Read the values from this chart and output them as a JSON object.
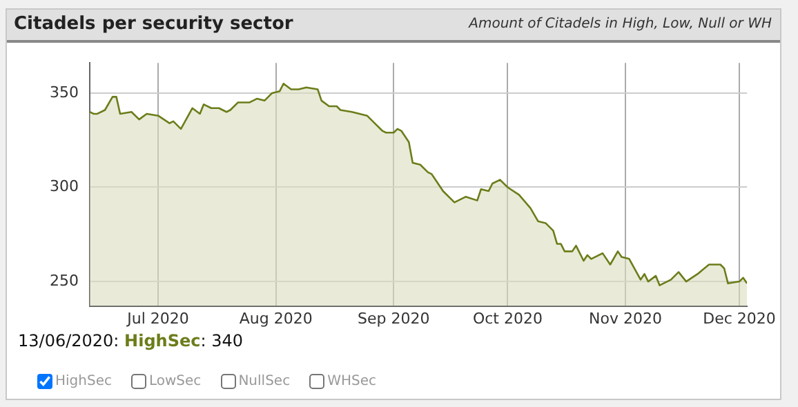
{
  "chart_data": {
    "type": "area",
    "title": "Citadels per security sector",
    "subtitle": "Amount of Citadels in High, Low, Null or WH",
    "x": [
      "2020-06-13",
      "2020-06-14",
      "2020-06-15",
      "2020-06-17",
      "2020-06-19",
      "2020-06-20",
      "2020-06-21",
      "2020-06-24",
      "2020-06-26",
      "2020-06-28",
      "2020-07-01",
      "2020-07-04",
      "2020-07-05",
      "2020-07-07",
      "2020-07-10",
      "2020-07-12",
      "2020-07-13",
      "2020-07-15",
      "2020-07-17",
      "2020-07-19",
      "2020-07-20",
      "2020-07-22",
      "2020-07-25",
      "2020-07-27",
      "2020-07-29",
      "2020-07-31",
      "2020-08-02",
      "2020-08-03",
      "2020-08-05",
      "2020-08-07",
      "2020-08-09",
      "2020-08-12",
      "2020-08-13",
      "2020-08-15",
      "2020-08-17",
      "2020-08-18",
      "2020-08-21",
      "2020-08-23",
      "2020-08-25",
      "2020-08-27",
      "2020-08-29",
      "2020-08-30",
      "2020-09-01",
      "2020-09-02",
      "2020-09-03",
      "2020-09-05",
      "2020-09-06",
      "2020-09-08",
      "2020-09-10",
      "2020-09-11",
      "2020-09-13",
      "2020-09-14",
      "2020-09-17",
      "2020-09-19",
      "2020-09-20",
      "2020-09-23",
      "2020-09-24",
      "2020-09-26",
      "2020-09-27",
      "2020-09-29",
      "2020-10-01",
      "2020-10-04",
      "2020-10-07",
      "2020-10-09",
      "2020-10-11",
      "2020-10-13",
      "2020-10-14",
      "2020-10-15",
      "2020-10-16",
      "2020-10-18",
      "2020-10-19",
      "2020-10-21",
      "2020-10-22",
      "2020-10-23",
      "2020-10-26",
      "2020-10-28",
      "2020-10-30",
      "2020-10-31",
      "2020-11-02",
      "2020-11-05",
      "2020-11-06",
      "2020-11-07",
      "2020-11-09",
      "2020-11-10",
      "2020-11-12",
      "2020-11-13",
      "2020-11-15",
      "2020-11-17",
      "2020-11-20",
      "2020-11-23",
      "2020-11-24",
      "2020-11-26",
      "2020-11-27",
      "2020-11-28",
      "2020-12-01",
      "2020-12-02",
      "2020-12-03"
    ],
    "series": [
      {
        "name": "HighSec",
        "color": "#6b7d1a",
        "values": [
          340,
          339,
          339,
          341,
          348,
          348,
          339,
          340,
          336,
          339,
          338,
          334,
          335,
          331,
          342,
          339,
          344,
          342,
          342,
          340,
          341,
          345,
          345,
          347,
          346,
          350,
          351,
          355,
          352,
          352,
          353,
          352,
          346,
          343,
          343,
          341,
          340,
          339,
          338,
          334,
          330,
          329,
          329,
          331,
          330,
          324,
          313,
          312,
          308,
          307,
          301,
          298,
          292,
          294,
          295,
          293,
          299,
          298,
          302,
          304,
          300,
          296,
          289,
          282,
          281,
          277,
          270,
          270,
          266,
          266,
          269,
          261,
          264,
          262,
          265,
          259,
          266,
          263,
          262,
          251,
          254,
          250,
          253,
          248,
          250,
          251,
          255,
          250,
          254,
          259,
          259,
          259,
          257,
          249,
          250,
          252,
          249
        ]
      }
    ],
    "xlim": [
      "2020-06-13",
      "2020-12-03"
    ],
    "xticks": [
      {
        "value": "2020-07-01",
        "label": "Jul 2020"
      },
      {
        "value": "2020-08-01",
        "label": "Aug 2020"
      },
      {
        "value": "2020-09-01",
        "label": "Sep 2020"
      },
      {
        "value": "2020-10-01",
        "label": "Oct 2020"
      },
      {
        "value": "2020-11-01",
        "label": "Nov 2020"
      },
      {
        "value": "2020-12-01",
        "label": "Dec 2020"
      }
    ],
    "ylim": [
      237,
      366
    ],
    "yticks": [
      250,
      300,
      350
    ],
    "grid": true,
    "legend": "bottom",
    "marker": "none",
    "annotations": [
      "13/06/2020: HighSec: 340",
      "LowSec",
      "NullSec",
      "WHSec"
    ]
  }
}
